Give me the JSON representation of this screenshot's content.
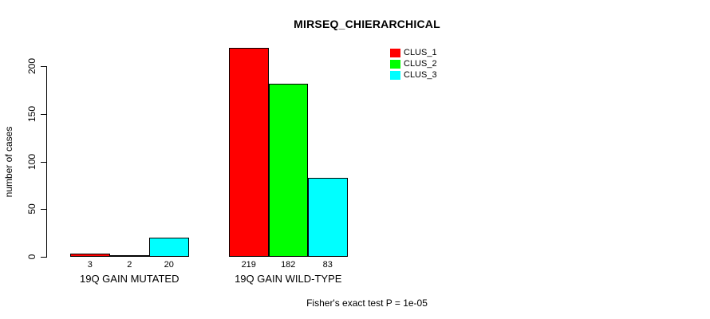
{
  "chart_data": {
    "type": "bar",
    "title": "MIRSEQ_CHIERARCHICAL",
    "ylabel": "number of cases",
    "xlabel": "",
    "ylim": [
      0,
      200
    ],
    "yticks": [
      0,
      50,
      100,
      150,
      200
    ],
    "grid": false,
    "legend_position": "top-right",
    "background": "#ffffff",
    "bar_border_color": "#000000",
    "series": [
      {
        "name": "CLUS_1",
        "color": "#ff0000"
      },
      {
        "name": "CLUS_2",
        "color": "#00ff00"
      },
      {
        "name": "CLUS_3",
        "color": "#00ffff"
      }
    ],
    "categories": [
      "19Q GAIN MUTATED",
      "19Q GAIN WILD-TYPE"
    ],
    "groups": [
      {
        "label": "19Q GAIN MUTATED",
        "values": [
          3,
          2,
          20
        ]
      },
      {
        "label": "19Q GAIN WILD-TYPE",
        "values": [
          219,
          182,
          83
        ]
      }
    ],
    "footnote": "Fisher's exact test P = 1e-05"
  }
}
